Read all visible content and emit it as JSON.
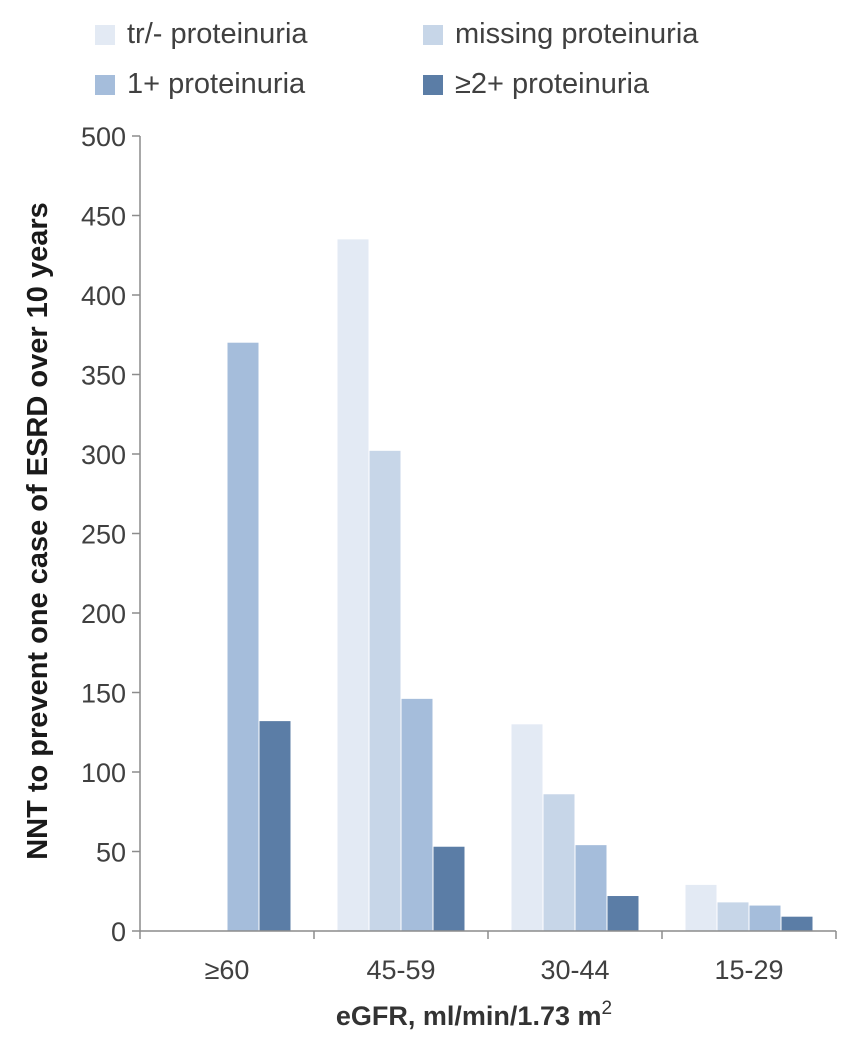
{
  "chart_data": {
    "type": "bar",
    "title": "",
    "categories": [
      "≥60",
      "45-59",
      "30-44",
      "15-29"
    ],
    "series": [
      {
        "name": "tr/- proteinuria",
        "color": "#e3eaf4",
        "values": [
          null,
          435,
          130,
          29
        ]
      },
      {
        "name": "missing proteinuria",
        "color": "#c7d6e8",
        "values": [
          null,
          302,
          86,
          18
        ]
      },
      {
        "name": "1+ proteinuria",
        "color": "#a5bddb",
        "values": [
          370,
          146,
          54,
          16
        ]
      },
      {
        "name": "≥2+ proteinuria",
        "color": "#5b7da6",
        "values": [
          132,
          53,
          22,
          9
        ]
      }
    ],
    "xlabel": "eGFR, ml/min/1.73 m",
    "xlabel_superscript": "2",
    "ylabel": "NNT to prevent one case of ESRD over 10 years",
    "ylim": [
      0,
      500
    ],
    "yticks": [
      0,
      50,
      100,
      150,
      200,
      250,
      300,
      350,
      400,
      450,
      500
    ],
    "grid": false,
    "legend_position": "top"
  }
}
